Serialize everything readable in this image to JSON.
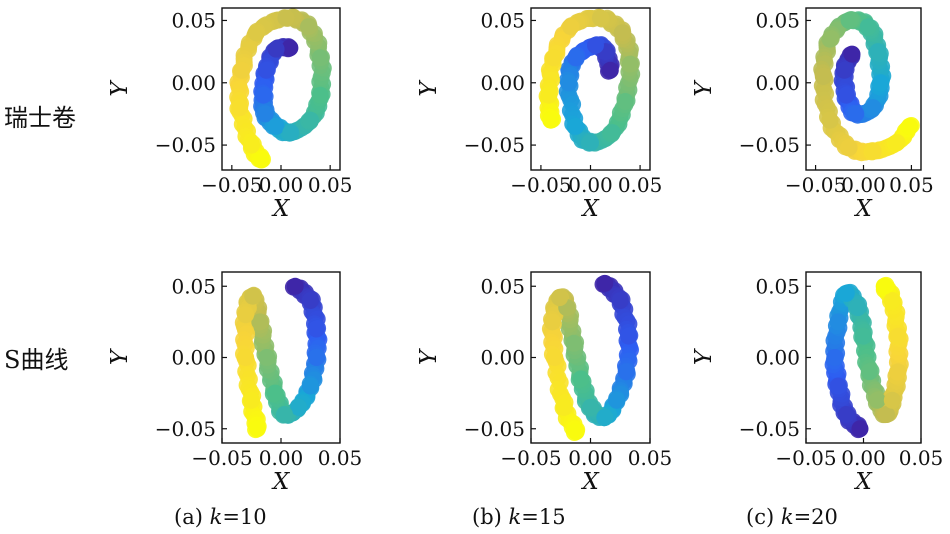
{
  "row_labels": [
    "瑞士卷",
    "S曲线"
  ],
  "captions": [
    {
      "prefix": "(a) ",
      "k": "k",
      "value": "=10"
    },
    {
      "prefix": "(b) ",
      "k": "k",
      "value": "=15"
    },
    {
      "prefix": "(c) ",
      "k": "k",
      "value": "=20"
    }
  ],
  "colormap": [
    "#3e26a8",
    "#2e5df2",
    "#1aa8d6",
    "#4cbf8a",
    "#c3bd50",
    "#f7d43a",
    "#f9fb0e"
  ],
  "chart_data": [
    {
      "type": "scatter",
      "row": 0,
      "col": 0,
      "manifold": "swiss-roll",
      "xlabel": "X",
      "ylabel": "Y",
      "xlim": [
        -0.06,
        0.06
      ],
      "ylim": [
        -0.07,
        0.06
      ],
      "xticks": [
        "−0.05",
        "0.00",
        "0.05"
      ],
      "yticks": [
        "0.05",
        "0.00",
        "−0.05"
      ],
      "x": [
        0.009,
        -0.005,
        -0.015,
        -0.018,
        -0.016,
        -0.005,
        0.01,
        0.03,
        0.04,
        0.04,
        0.028,
        0.005,
        -0.025,
        -0.04,
        -0.042,
        -0.03,
        -0.02
      ],
      "y": [
        0.028,
        0.027,
        0.01,
        -0.01,
        -0.025,
        -0.035,
        -0.04,
        -0.03,
        -0.01,
        0.02,
        0.045,
        0.052,
        0.04,
        0.01,
        -0.02,
        -0.05,
        -0.062
      ],
      "color_values": [
        0.0,
        0.06,
        0.13,
        0.19,
        0.25,
        0.31,
        0.38,
        0.44,
        0.5,
        0.56,
        0.63,
        0.69,
        0.75,
        0.81,
        0.88,
        0.94,
        1.0
      ]
    },
    {
      "type": "scatter",
      "row": 0,
      "col": 1,
      "manifold": "swiss-roll",
      "xlabel": "X",
      "ylabel": "Y",
      "xlim": [
        -0.06,
        0.06
      ],
      "ylim": [
        -0.07,
        0.06
      ],
      "xticks": [
        "−0.05",
        "0.00",
        "0.05"
      ],
      "yticks": [
        "0.05",
        "0.00",
        "−0.05"
      ],
      "x": [
        0.02,
        0.015,
        0.005,
        -0.015,
        -0.022,
        -0.015,
        0.0,
        0.022,
        0.035,
        0.04,
        0.032,
        0.01,
        -0.02,
        -0.037,
        -0.042,
        -0.04
      ],
      "y": [
        0.01,
        0.025,
        0.03,
        0.02,
        0.0,
        -0.035,
        -0.048,
        -0.04,
        -0.015,
        0.015,
        0.04,
        0.052,
        0.045,
        0.02,
        -0.01,
        -0.03
      ],
      "color_values": [
        0.0,
        0.07,
        0.13,
        0.2,
        0.27,
        0.33,
        0.4,
        0.47,
        0.53,
        0.6,
        0.67,
        0.73,
        0.8,
        0.87,
        0.93,
        1.0
      ]
    },
    {
      "type": "scatter",
      "row": 0,
      "col": 2,
      "manifold": "swiss-roll",
      "xlabel": "X",
      "ylabel": "Y",
      "xlim": [
        -0.06,
        0.06
      ],
      "ylim": [
        -0.07,
        0.06
      ],
      "xticks": [
        "−0.05",
        "0.00",
        "0.05"
      ],
      "yticks": [
        "0.05",
        "0.00",
        "−0.05"
      ],
      "x": [
        -0.012,
        -0.02,
        -0.018,
        -0.008,
        0.01,
        0.018,
        0.015,
        0.005,
        -0.015,
        -0.035,
        -0.042,
        -0.035,
        -0.015,
        0.01,
        0.035,
        0.048
      ],
      "y": [
        0.023,
        0.01,
        -0.01,
        -0.025,
        -0.02,
        0.0,
        0.025,
        0.045,
        0.05,
        0.035,
        0.005,
        -0.03,
        -0.052,
        -0.055,
        -0.048,
        -0.035
      ],
      "color_values": [
        0.0,
        0.07,
        0.13,
        0.2,
        0.27,
        0.33,
        0.4,
        0.47,
        0.53,
        0.6,
        0.67,
        0.73,
        0.8,
        0.87,
        0.93,
        1.0
      ]
    },
    {
      "type": "scatter",
      "row": 1,
      "col": 0,
      "manifold": "s-curve",
      "xlabel": "X",
      "ylabel": "Y",
      "xlim": [
        -0.05,
        0.05
      ],
      "ylim": [
        -0.06,
        0.06
      ],
      "xticks": [
        "−0.05",
        "0.00",
        "0.05"
      ],
      "yticks": [
        "0.05",
        "0.00",
        "−0.05"
      ],
      "x": [
        0.012,
        0.025,
        0.03,
        0.03,
        0.025,
        0.015,
        0.003,
        -0.005,
        -0.012,
        -0.018,
        -0.024,
        -0.03,
        -0.03,
        -0.025,
        -0.02
      ],
      "y": [
        0.05,
        0.04,
        0.02,
        0.0,
        -0.02,
        -0.035,
        -0.04,
        -0.025,
        0.0,
        0.025,
        0.043,
        0.03,
        0.0,
        -0.03,
        -0.05
      ],
      "color_values": [
        0.0,
        0.07,
        0.14,
        0.21,
        0.29,
        0.36,
        0.43,
        0.5,
        0.57,
        0.64,
        0.71,
        0.79,
        0.86,
        0.93,
        1.0
      ]
    },
    {
      "type": "scatter",
      "row": 1,
      "col": 1,
      "manifold": "s-curve",
      "xlabel": "X",
      "ylabel": "Y",
      "xlim": [
        -0.05,
        0.05
      ],
      "ylim": [
        -0.06,
        0.06
      ],
      "xticks": [
        "−0.05",
        "0.00",
        "0.05"
      ],
      "yticks": [
        "0.05",
        "0.00",
        "−0.05"
      ],
      "x": [
        0.012,
        0.025,
        0.032,
        0.03,
        0.022,
        0.012,
        0.0,
        -0.008,
        -0.014,
        -0.02,
        -0.026,
        -0.032,
        -0.03,
        -0.022,
        -0.012
      ],
      "y": [
        0.052,
        0.04,
        0.015,
        -0.01,
        -0.03,
        -0.042,
        -0.035,
        -0.015,
        0.01,
        0.035,
        0.042,
        0.025,
        0.0,
        -0.035,
        -0.052
      ],
      "color_values": [
        0.0,
        0.07,
        0.14,
        0.21,
        0.29,
        0.36,
        0.43,
        0.5,
        0.57,
        0.64,
        0.71,
        0.79,
        0.86,
        0.93,
        1.0
      ]
    },
    {
      "type": "scatter",
      "row": 1,
      "col": 2,
      "manifold": "s-curve",
      "xlabel": "X",
      "ylabel": "Y",
      "xlim": [
        -0.05,
        0.05
      ],
      "ylim": [
        -0.06,
        0.06
      ],
      "xticks": [
        "−0.05",
        "0.00",
        "0.05"
      ],
      "yticks": [
        "0.05",
        "0.00",
        "−0.05"
      ],
      "x": [
        -0.003,
        -0.015,
        -0.022,
        -0.025,
        -0.022,
        -0.015,
        -0.005,
        0.0,
        0.005,
        0.012,
        0.02,
        0.025,
        0.03,
        0.03,
        0.025,
        0.018
      ],
      "y": [
        -0.05,
        -0.04,
        -0.02,
        0.0,
        0.025,
        0.045,
        0.035,
        0.015,
        -0.01,
        -0.03,
        -0.04,
        -0.03,
        -0.01,
        0.015,
        0.04,
        0.05
      ],
      "color_values": [
        0.0,
        0.07,
        0.13,
        0.2,
        0.27,
        0.33,
        0.4,
        0.47,
        0.53,
        0.6,
        0.67,
        0.73,
        0.8,
        0.87,
        0.93,
        1.0
      ]
    }
  ]
}
